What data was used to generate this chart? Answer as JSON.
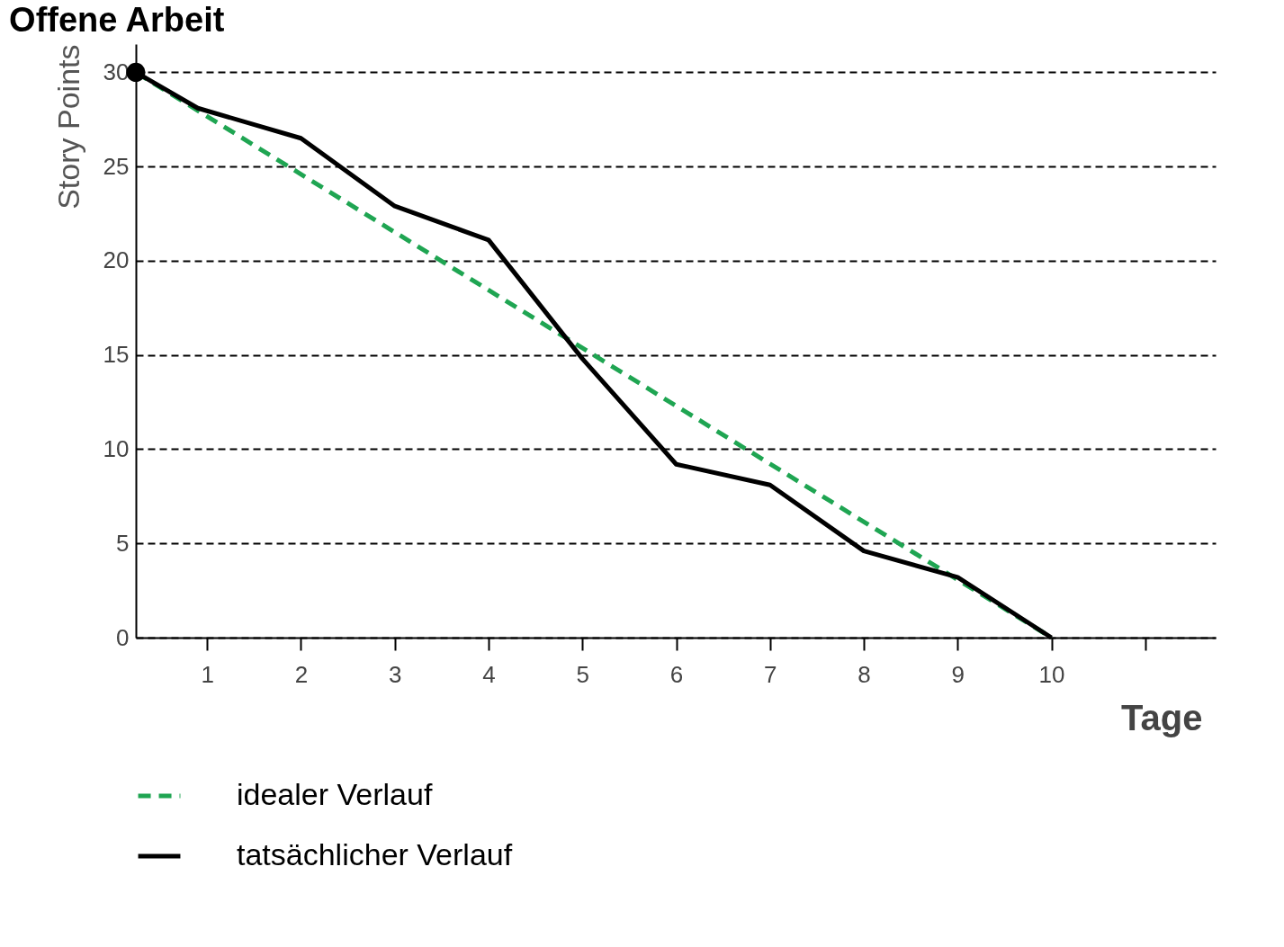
{
  "chart_data": {
    "type": "line",
    "title": "Offene Arbeit",
    "xlabel": "Tage",
    "ylabel": "Story Points",
    "xlim": [
      0.24,
      11.75
    ],
    "xticks": [
      1,
      2,
      3,
      4,
      5,
      6,
      7,
      8,
      9,
      10,
      {
        "value": 11,
        "label": null
      }
    ],
    "ylim": [
      0,
      31.5
    ],
    "yticks": [
      0,
      5,
      10,
      15,
      20,
      25,
      30
    ],
    "grid": "y",
    "legend": "bottom",
    "series": [
      {
        "name": "idealer Verlauf",
        "color": "#1fa552",
        "line_style": "dashed",
        "x": [
          0.24,
          10
        ],
        "values": [
          30,
          0
        ]
      },
      {
        "name": "tatsächlicher Verlauf",
        "color": "#000000",
        "line_style": "solid",
        "x": [
          0.24,
          0.9,
          2,
          3,
          4,
          5,
          6,
          7,
          8,
          9,
          10
        ],
        "values": [
          30,
          28.1,
          26.5,
          22.9,
          21.1,
          14.8,
          9.2,
          8.1,
          4.6,
          3.2,
          0
        ]
      },
      {
        "type": "scatter",
        "color": "#000000",
        "marker": "circle",
        "x": [
          0.24
        ],
        "values": [
          30
        ]
      }
    ]
  }
}
